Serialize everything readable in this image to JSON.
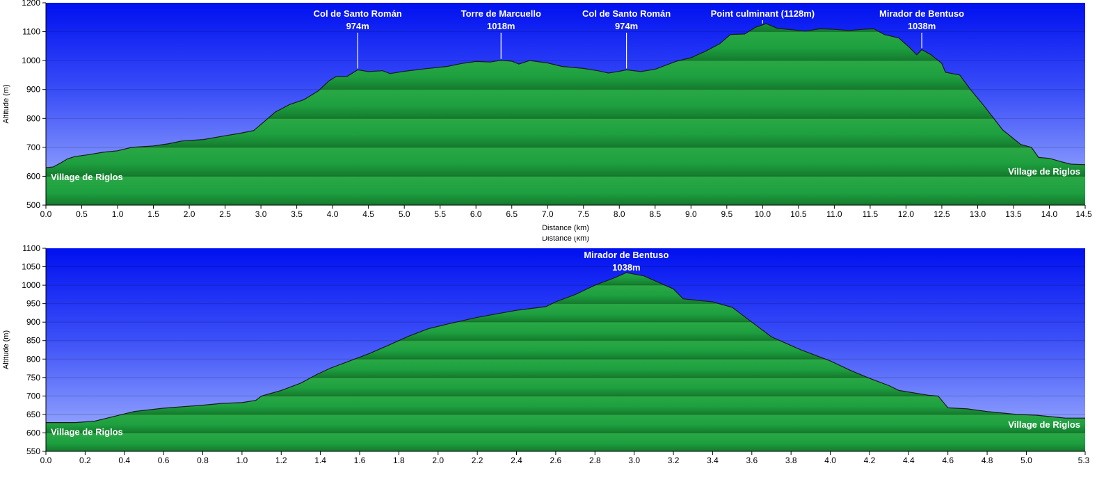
{
  "chart_data": [
    {
      "type": "area",
      "xlabel": "Distance  (km)",
      "ylabel": "Altitude (m)",
      "xlim": [
        0,
        14.5
      ],
      "ylim": [
        500,
        1200
      ],
      "x_ticks": [
        "0.0",
        "0.5",
        "1.0",
        "1.5",
        "2.0",
        "2.5",
        "3.0",
        "3.5",
        "4.0",
        "4.5",
        "5.0",
        "5.5",
        "6.0",
        "6.5",
        "7.0",
        "7.5",
        "8.0",
        "8.5",
        "9.0",
        "9.5",
        "10.0",
        "10.5",
        "11.0",
        "11.5",
        "12.0",
        "12.5",
        "13.0",
        "13.5",
        "14.0",
        "14.5"
      ],
      "y_ticks": [
        "500",
        "600",
        "700",
        "800",
        "900",
        "1000",
        "1100",
        "1200"
      ],
      "grid": true,
      "colors": {
        "sky_top": "#0010f0",
        "sky_bottom": "#a8b8ff",
        "fill_top": "#2aa845",
        "fill_mid": "#1ea040",
        "fill_bottom": "#147a2d",
        "outline": "#1a1a1a"
      },
      "points": [
        [
          0,
          630
        ],
        [
          0.1,
          632
        ],
        [
          0.2,
          645
        ],
        [
          0.3,
          660
        ],
        [
          0.4,
          668
        ],
        [
          0.6,
          675
        ],
        [
          0.8,
          683
        ],
        [
          1.0,
          688
        ],
        [
          1.2,
          700
        ],
        [
          1.5,
          705
        ],
        [
          1.7,
          712
        ],
        [
          1.9,
          722
        ],
        [
          2.2,
          727
        ],
        [
          2.5,
          740
        ],
        [
          2.7,
          748
        ],
        [
          2.9,
          758
        ],
        [
          3.05,
          790
        ],
        [
          3.2,
          822
        ],
        [
          3.4,
          848
        ],
        [
          3.6,
          865
        ],
        [
          3.8,
          895
        ],
        [
          3.95,
          930
        ],
        [
          4.05,
          945
        ],
        [
          4.2,
          945
        ],
        [
          4.35,
          968
        ],
        [
          4.5,
          962
        ],
        [
          4.7,
          965
        ],
        [
          4.8,
          955
        ],
        [
          5.0,
          963
        ],
        [
          5.3,
          972
        ],
        [
          5.6,
          980
        ],
        [
          5.8,
          990
        ],
        [
          6.0,
          997
        ],
        [
          6.2,
          995
        ],
        [
          6.35,
          1001
        ],
        [
          6.5,
          998
        ],
        [
          6.6,
          988
        ],
        [
          6.75,
          1000
        ],
        [
          7.0,
          992
        ],
        [
          7.2,
          980
        ],
        [
          7.5,
          973
        ],
        [
          7.7,
          965
        ],
        [
          7.85,
          957
        ],
        [
          8.0,
          963
        ],
        [
          8.1,
          968
        ],
        [
          8.3,
          962
        ],
        [
          8.5,
          970
        ],
        [
          8.8,
          998
        ],
        [
          9.0,
          1010
        ],
        [
          9.2,
          1032
        ],
        [
          9.4,
          1058
        ],
        [
          9.55,
          1090
        ],
        [
          9.75,
          1092
        ],
        [
          9.9,
          1115
        ],
        [
          10.05,
          1128
        ],
        [
          10.2,
          1112
        ],
        [
          10.4,
          1107
        ],
        [
          10.6,
          1102
        ],
        [
          10.8,
          1110
        ],
        [
          11.0,
          1108
        ],
        [
          11.2,
          1104
        ],
        [
          11.4,
          1108
        ],
        [
          11.55,
          1110
        ],
        [
          11.7,
          1090
        ],
        [
          11.9,
          1078
        ],
        [
          12.05,
          1045
        ],
        [
          12.15,
          1020
        ],
        [
          12.22,
          1038
        ],
        [
          12.35,
          1020
        ],
        [
          12.5,
          990
        ],
        [
          12.55,
          960
        ],
        [
          12.75,
          950
        ],
        [
          12.9,
          900
        ],
        [
          13.1,
          840
        ],
        [
          13.35,
          760
        ],
        [
          13.5,
          730
        ],
        [
          13.6,
          710
        ],
        [
          13.75,
          700
        ],
        [
          13.85,
          665
        ],
        [
          14.0,
          662
        ],
        [
          14.1,
          655
        ],
        [
          14.2,
          648
        ],
        [
          14.3,
          642
        ],
        [
          14.5,
          640
        ]
      ],
      "annotations": [
        {
          "name": "Col de Santo Román",
          "elev": "974m",
          "x": 4.35
        },
        {
          "name": "Torre de Marcuello",
          "elev": "1018m",
          "x": 6.35
        },
        {
          "name": "Col de Santo Román",
          "elev": "974m",
          "x": 8.1
        },
        {
          "name": "Point culminant (1128m)",
          "elev": "",
          "x": 10.0
        },
        {
          "name": "Mirador de Bentuso",
          "elev": "1038m",
          "x": 12.22
        }
      ],
      "start_label": "Village de Riglos",
      "end_label": "Village de Riglos"
    },
    {
      "type": "area",
      "xlabel": "Distance  (km)",
      "ylabel": "Altitude (m)",
      "xlim": [
        0,
        5.3
      ],
      "ylim": [
        550,
        1100
      ],
      "x_ticks": [
        "0.0",
        "0.2",
        "0.4",
        "0.6",
        "0.8",
        "1.0",
        "1.2",
        "1.4",
        "1.6",
        "1.8",
        "2.0",
        "2.2",
        "2.4",
        "2.6",
        "2.8",
        "3.0",
        "3.2",
        "3.4",
        "3.6",
        "3.8",
        "4.0",
        "4.2",
        "4.4",
        "4.6",
        "4.8",
        "5.0",
        "5.3"
      ],
      "y_ticks": [
        "550",
        "600",
        "650",
        "700",
        "750",
        "800",
        "850",
        "900",
        "950",
        "1000",
        "1050",
        "1100"
      ],
      "grid": true,
      "colors": {
        "sky_top": "#0010f0",
        "sky_bottom": "#a8b8ff",
        "fill_top": "#2aa845",
        "fill_mid": "#1ea040",
        "fill_bottom": "#147a2d",
        "outline": "#1a1a1a"
      },
      "points": [
        [
          0,
          628
        ],
        [
          0.15,
          628
        ],
        [
          0.25,
          632
        ],
        [
          0.35,
          645
        ],
        [
          0.45,
          658
        ],
        [
          0.6,
          667
        ],
        [
          0.8,
          675
        ],
        [
          0.9,
          680
        ],
        [
          1.0,
          682
        ],
        [
          1.07,
          688
        ],
        [
          1.1,
          700
        ],
        [
          1.2,
          715
        ],
        [
          1.3,
          735
        ],
        [
          1.38,
          758
        ],
        [
          1.45,
          775
        ],
        [
          1.55,
          795
        ],
        [
          1.65,
          815
        ],
        [
          1.75,
          838
        ],
        [
          1.85,
          862
        ],
        [
          1.95,
          882
        ],
        [
          2.05,
          895
        ],
        [
          2.2,
          913
        ],
        [
          2.4,
          932
        ],
        [
          2.55,
          942
        ],
        [
          2.6,
          955
        ],
        [
          2.7,
          975
        ],
        [
          2.8,
          1000
        ],
        [
          2.9,
          1020
        ],
        [
          2.96,
          1034
        ],
        [
          3.05,
          1025
        ],
        [
          3.2,
          990
        ],
        [
          3.25,
          963
        ],
        [
          3.4,
          955
        ],
        [
          3.5,
          940
        ],
        [
          3.6,
          900
        ],
        [
          3.7,
          860
        ],
        [
          3.85,
          825
        ],
        [
          4.0,
          795
        ],
        [
          4.1,
          770
        ],
        [
          4.2,
          748
        ],
        [
          4.3,
          728
        ],
        [
          4.35,
          715
        ],
        [
          4.5,
          702
        ],
        [
          4.55,
          700
        ],
        [
          4.6,
          668
        ],
        [
          4.7,
          665
        ],
        [
          4.8,
          658
        ],
        [
          4.95,
          650
        ],
        [
          5.05,
          648
        ],
        [
          5.2,
          640
        ],
        [
          5.3,
          640
        ]
      ],
      "annotations": [
        {
          "name": "Mirador de Bentuso",
          "elev": "1038m",
          "x": 2.96
        }
      ],
      "start_label": "Village de Riglos",
      "end_label": "Village de Riglos"
    }
  ]
}
